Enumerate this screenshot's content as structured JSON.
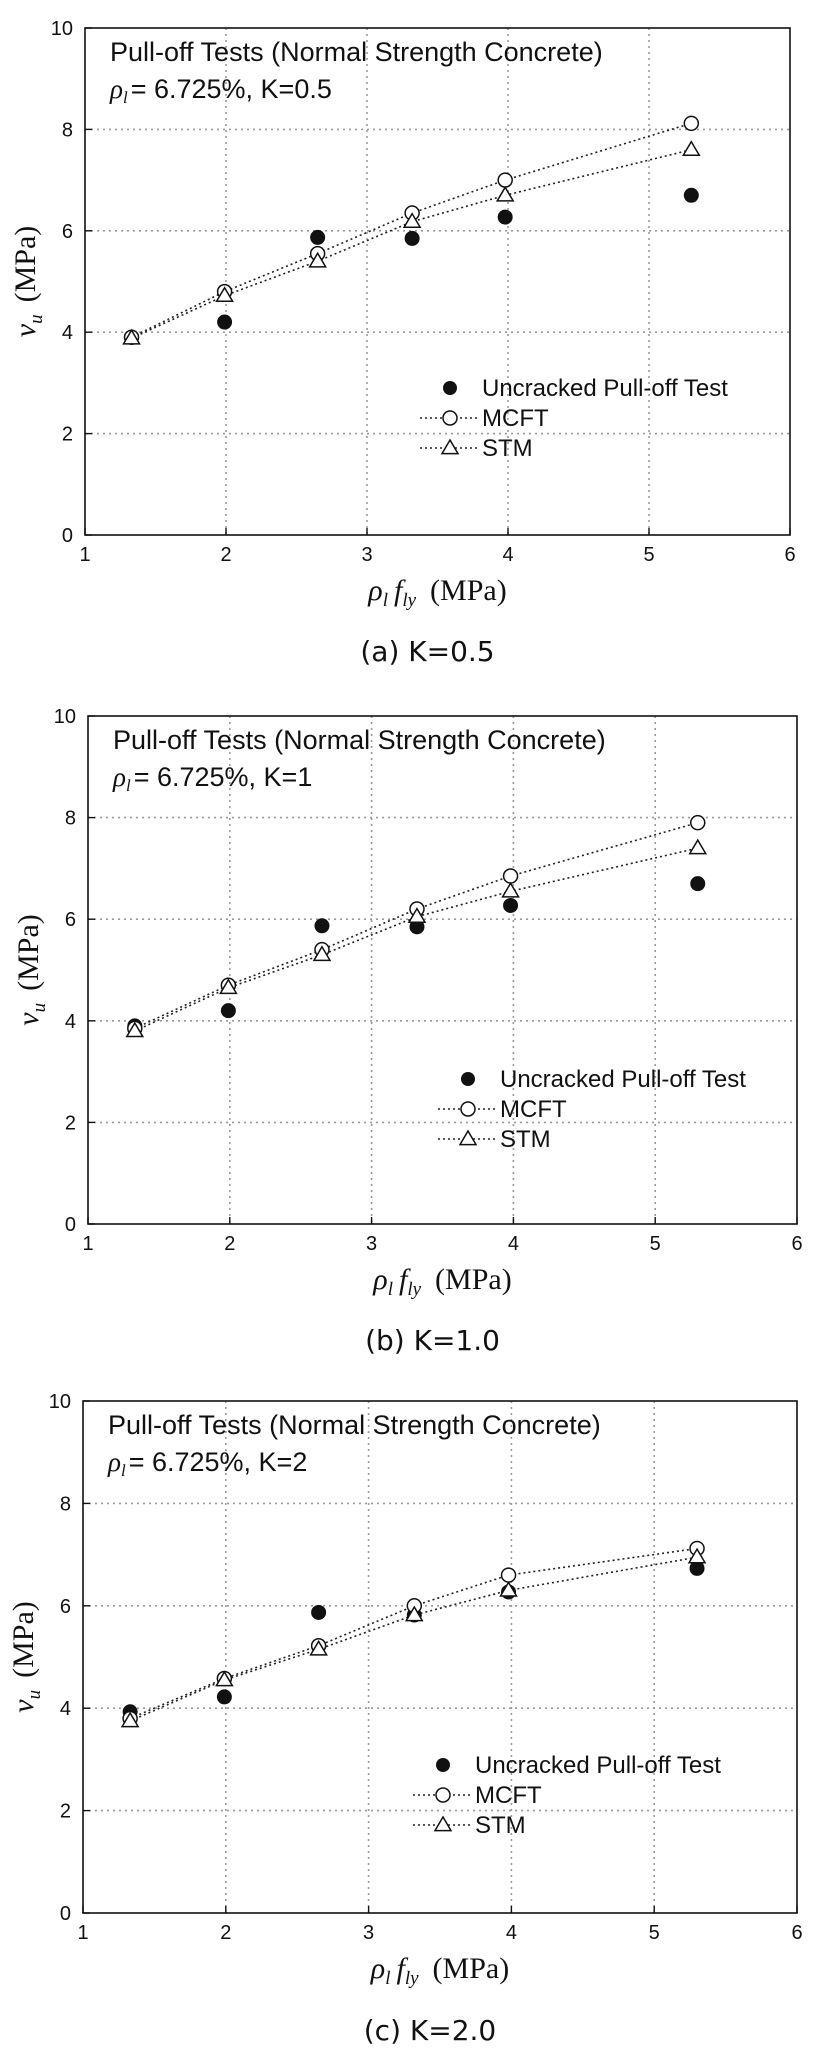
{
  "chart_data": [
    {
      "type": "scatter",
      "caption": "(a) K=0.5",
      "annotation_title": "Pull-off Tests (Normal Strength Concrete)",
      "annotation_ratio": "= 6.725%, K=0.5",
      "xlabel": "ρl fly (MPa)",
      "ylabel": "vu (MPa)",
      "xlim": [
        1,
        6
      ],
      "ylim": [
        0,
        10
      ],
      "xticks": [
        "1",
        "2",
        "3",
        "4",
        "5",
        "6"
      ],
      "yticks": [
        "0",
        "2",
        "4",
        "6",
        "8",
        "10"
      ],
      "grid": true,
      "legend_position": "lower-right",
      "series": [
        {
          "name": "Uncracked Pull-off Test",
          "marker": "filled-circle",
          "x": [
            1.33,
            1.99,
            2.65,
            3.32,
            3.98,
            5.3
          ],
          "y": [
            3.9,
            4.2,
            5.87,
            5.85,
            6.27,
            6.7
          ]
        },
        {
          "name": "MCFT",
          "marker": "open-circle",
          "line": "dotted",
          "x": [
            1.33,
            1.99,
            2.65,
            3.32,
            3.98,
            5.3
          ],
          "y": [
            3.9,
            4.8,
            5.55,
            6.35,
            7.0,
            8.12
          ]
        },
        {
          "name": "STM",
          "marker": "open-triangle",
          "line": "dotted",
          "x": [
            1.33,
            1.99,
            2.65,
            3.32,
            3.98,
            5.3
          ],
          "y": [
            3.88,
            4.72,
            5.4,
            6.18,
            6.7,
            7.6
          ]
        }
      ]
    },
    {
      "type": "scatter",
      "caption": "(b) K=1.0",
      "annotation_title": "Pull-off Tests (Normal Strength Concrete)",
      "annotation_ratio": "= 6.725%, K=1",
      "xlabel": "ρl fly (MPa)",
      "ylabel": "vu (MPa)",
      "xlim": [
        1,
        6
      ],
      "ylim": [
        0,
        10
      ],
      "xticks": [
        "1",
        "2",
        "3",
        "4",
        "5",
        "6"
      ],
      "yticks": [
        "0",
        "2",
        "4",
        "6",
        "8",
        "10"
      ],
      "grid": true,
      "legend_position": "lower-right",
      "series": [
        {
          "name": "Uncracked Pull-off Test",
          "marker": "filled-circle",
          "x": [
            1.33,
            1.99,
            2.65,
            3.32,
            3.98,
            5.3
          ],
          "y": [
            3.9,
            4.2,
            5.87,
            5.85,
            6.27,
            6.7
          ]
        },
        {
          "name": "MCFT",
          "marker": "open-circle",
          "line": "dotted",
          "x": [
            1.33,
            1.99,
            2.65,
            3.32,
            3.98,
            5.3
          ],
          "y": [
            3.85,
            4.7,
            5.4,
            6.2,
            6.85,
            7.9
          ]
        },
        {
          "name": "STM",
          "marker": "open-triangle",
          "line": "dotted",
          "x": [
            1.33,
            1.99,
            2.65,
            3.32,
            3.98,
            5.3
          ],
          "y": [
            3.8,
            4.65,
            5.3,
            6.05,
            6.55,
            7.4
          ]
        }
      ]
    },
    {
      "type": "scatter",
      "caption": "(c) K=2.0",
      "annotation_title": "Pull-off Tests (Normal Strength Concrete)",
      "annotation_ratio": "= 6.725%, K=2",
      "xlabel": "ρl fly (MPa)",
      "ylabel": "vu (MPa)",
      "xlim": [
        1,
        6
      ],
      "ylim": [
        0,
        10
      ],
      "xticks": [
        "1",
        "2",
        "3",
        "4",
        "5",
        "6"
      ],
      "yticks": [
        "0",
        "2",
        "4",
        "6",
        "8",
        "10"
      ],
      "grid": true,
      "legend_position": "lower-right",
      "series": [
        {
          "name": "Uncracked Pull-off Test",
          "marker": "filled-circle",
          "x": [
            1.33,
            1.99,
            2.65,
            3.32,
            3.98,
            5.3
          ],
          "y": [
            3.93,
            4.22,
            5.87,
            5.82,
            6.27,
            6.73
          ]
        },
        {
          "name": "MCFT",
          "marker": "open-circle",
          "line": "dotted",
          "x": [
            1.33,
            1.99,
            2.65,
            3.32,
            3.98,
            5.3
          ],
          "y": [
            3.8,
            4.58,
            5.22,
            6.0,
            6.6,
            7.12
          ]
        },
        {
          "name": "STM",
          "marker": "open-triangle",
          "line": "dotted",
          "x": [
            1.33,
            1.99,
            2.65,
            3.32,
            3.98,
            5.3
          ],
          "y": [
            3.75,
            4.55,
            5.15,
            5.82,
            6.3,
            6.95
          ]
        }
      ]
    }
  ]
}
